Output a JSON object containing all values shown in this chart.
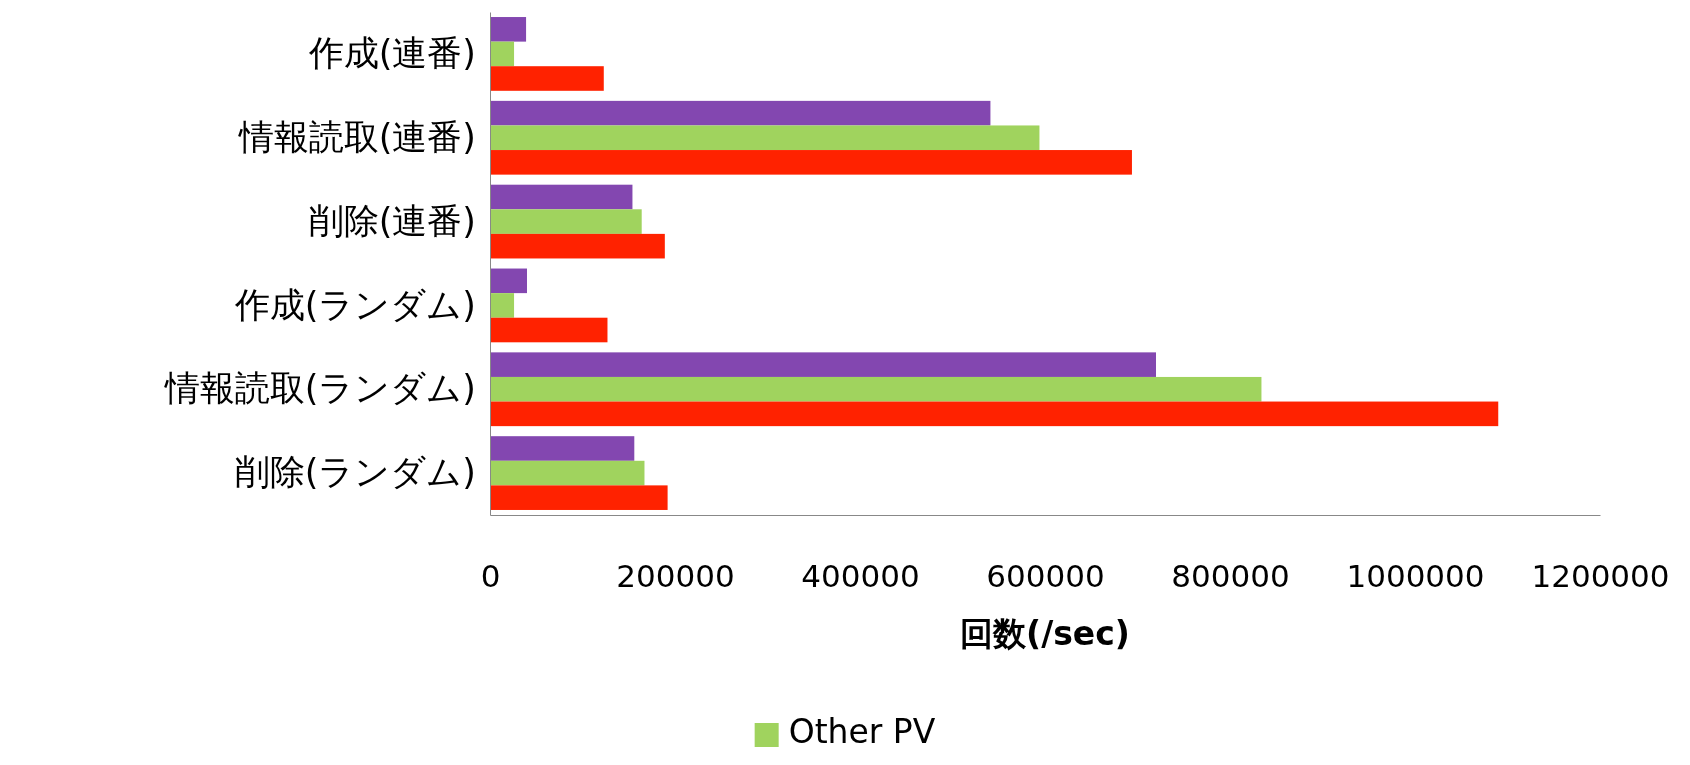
{
  "chart_data": {
    "type": "bar",
    "orientation": "horizontal",
    "xlabel": "回数(/sec)",
    "categories": [
      "作成(連番)",
      "情報読取(連番)",
      "削除(連番)",
      "作成(ランダム)",
      "情報読取(ランダム)",
      "削除(ランダム)"
    ],
    "series": [
      {
        "color": "#8347b0",
        "values": [
          39000,
          541000,
          154000,
          40000,
          720000,
          156000
        ]
      },
      {
        "name": "Other PV",
        "color": "#a0d35e",
        "values": [
          26000,
          594000,
          164000,
          26000,
          834000,
          167000
        ]
      },
      {
        "color": "#ff2200",
        "values": [
          123000,
          694000,
          189000,
          127000,
          1090000,
          192000
        ]
      }
    ],
    "xlim": [
      0,
      1200000
    ],
    "xticks": [
      0,
      200000,
      400000,
      600000,
      800000,
      1000000,
      1200000
    ],
    "grid": false,
    "legend": "bottom"
  }
}
